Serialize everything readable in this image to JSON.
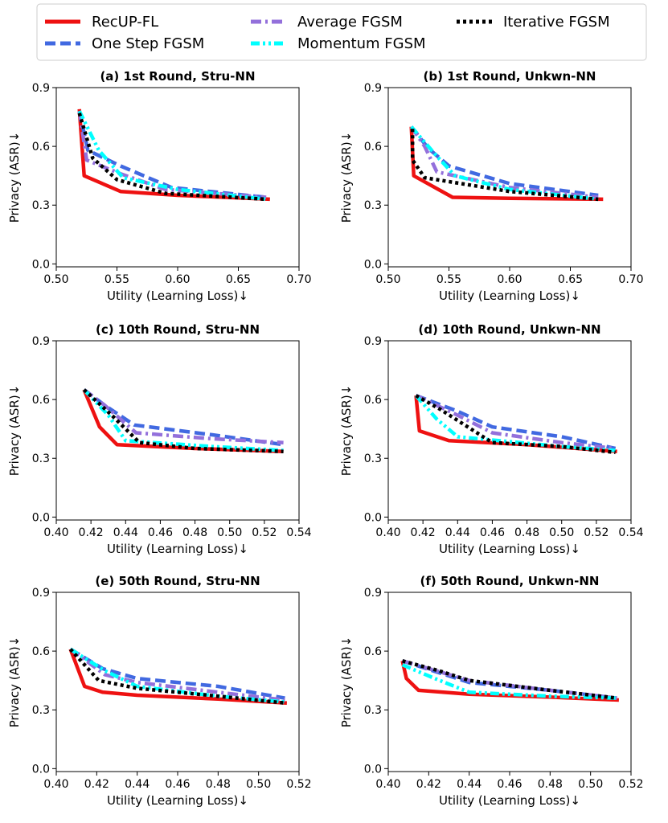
{
  "chart_data": {
    "legend": {
      "placement": "top-center",
      "entries": [
        {
          "name": "RecUP-FL",
          "color": "#ee1111",
          "dash": "solid"
        },
        {
          "name": "One Step FGSM",
          "color": "#4169e1",
          "dash": "dashed"
        },
        {
          "name": "Average FGSM",
          "color": "#9370db",
          "dash": "dashdot"
        },
        {
          "name": "Momentum FGSM",
          "color": "#00ffff",
          "dash": "dashdotdot"
        },
        {
          "name": "Iterative FGSM",
          "color": "#000000",
          "dash": "dotted"
        }
      ]
    },
    "subplots": [
      {
        "type": "line",
        "title": "(a) 1st Round, Stru-NN",
        "xlabel": "Utility (Learning Loss)↓",
        "ylabel": "Privacy (ASR)↓",
        "xlim": [
          0.5,
          0.7
        ],
        "ylim": [
          -0.015,
          0.9
        ],
        "xticks": [
          0.5,
          0.55,
          0.6,
          0.65,
          0.7
        ],
        "xtick_labels": [
          "0.50",
          "0.55",
          "0.60",
          "0.65",
          "0.70"
        ],
        "yticks": [
          0.0,
          0.3,
          0.6,
          0.9
        ],
        "ytick_labels": [
          "0.0",
          "0.3",
          "0.6",
          "0.9"
        ],
        "series": [
          {
            "name": "RecUP-FL",
            "x": [
              0.519,
              0.523,
              0.553,
              0.6,
              0.676
            ],
            "y": [
              0.79,
              0.45,
              0.37,
              0.35,
              0.33
            ]
          },
          {
            "name": "One Step FGSM",
            "x": [
              0.519,
              0.526,
              0.553,
              0.595,
              0.673
            ],
            "y": [
              0.78,
              0.58,
              0.5,
              0.39,
              0.34
            ]
          },
          {
            "name": "Average FGSM",
            "x": [
              0.519,
              0.525,
              0.553,
              0.59,
              0.673
            ],
            "y": [
              0.78,
              0.53,
              0.46,
              0.38,
              0.34
            ]
          },
          {
            "name": "Momentum FGSM",
            "x": [
              0.519,
              0.535,
              0.555,
              0.6,
              0.673
            ],
            "y": [
              0.78,
              0.58,
              0.44,
              0.38,
              0.33
            ]
          },
          {
            "name": "Iterative FGSM",
            "x": [
              0.519,
              0.53,
              0.55,
              0.59,
              0.673
            ],
            "y": [
              0.77,
              0.54,
              0.43,
              0.36,
              0.33
            ]
          }
        ]
      },
      {
        "type": "line",
        "title": "(b) 1st Round, Unkwn-NN",
        "xlabel": "Utility (Learning Loss)↓",
        "ylabel": "Privacy (ASR)↓",
        "xlim": [
          0.5,
          0.7
        ],
        "ylim": [
          -0.015,
          0.9
        ],
        "xticks": [
          0.5,
          0.55,
          0.6,
          0.65,
          0.7
        ],
        "xtick_labels": [
          "0.50",
          "0.55",
          "0.60",
          "0.65",
          "0.70"
        ],
        "yticks": [
          0.0,
          0.3,
          0.6,
          0.9
        ],
        "ytick_labels": [
          "0.0",
          "0.3",
          "0.6",
          "0.9"
        ],
        "series": [
          {
            "name": "RecUP-FL",
            "x": [
              0.519,
              0.521,
              0.553,
              0.6,
              0.677
            ],
            "y": [
              0.7,
              0.45,
              0.34,
              0.335,
              0.33
            ]
          },
          {
            "name": "One Step FGSM",
            "x": [
              0.519,
              0.533,
              0.55,
              0.6,
              0.673
            ],
            "y": [
              0.7,
              0.59,
              0.5,
              0.41,
              0.35
            ]
          },
          {
            "name": "Average FGSM",
            "x": [
              0.519,
              0.53,
              0.54,
              0.6,
              0.673
            ],
            "y": [
              0.7,
              0.6,
              0.47,
              0.39,
              0.34
            ]
          },
          {
            "name": "Momentum FGSM",
            "x": [
              0.519,
              0.54,
              0.555,
              0.6,
              0.673
            ],
            "y": [
              0.7,
              0.55,
              0.45,
              0.38,
              0.33
            ]
          },
          {
            "name": "Iterative FGSM",
            "x": [
              0.52,
              0.52,
              0.53,
              0.6,
              0.673
            ],
            "y": [
              0.69,
              0.53,
              0.44,
              0.37,
              0.33
            ]
          }
        ]
      },
      {
        "type": "line",
        "title": "(c) 10th Round, Stru-NN",
        "xlabel": "Utility (Learning Loss)↓",
        "ylabel": "Privacy (ASR)↓",
        "xlim": [
          0.4,
          0.54
        ],
        "ylim": [
          -0.015,
          0.9
        ],
        "xticks": [
          0.4,
          0.42,
          0.44,
          0.46,
          0.48,
          0.5,
          0.52,
          0.54
        ],
        "xtick_labels": [
          "0.40",
          "0.42",
          "0.44",
          "0.46",
          "0.48",
          "0.50",
          "0.52",
          "0.54"
        ],
        "yticks": [
          0.0,
          0.3,
          0.6,
          0.9
        ],
        "ytick_labels": [
          "0.0",
          "0.3",
          "0.6",
          "0.9"
        ],
        "series": [
          {
            "name": "RecUP-FL",
            "x": [
              0.416,
              0.425,
              0.435,
              0.48,
              0.531
            ],
            "y": [
              0.65,
              0.46,
              0.37,
              0.35,
              0.335
            ]
          },
          {
            "name": "One Step FGSM",
            "x": [
              0.416,
              0.428,
              0.445,
              0.49,
              0.531
            ],
            "y": [
              0.65,
              0.57,
              0.47,
              0.42,
              0.37
            ]
          },
          {
            "name": "Average FGSM",
            "x": [
              0.416,
              0.428,
              0.446,
              0.49,
              0.531
            ],
            "y": [
              0.65,
              0.57,
              0.43,
              0.4,
              0.38
            ]
          },
          {
            "name": "Momentum FGSM",
            "x": [
              0.416,
              0.43,
              0.44,
              0.49,
              0.531
            ],
            "y": [
              0.65,
              0.52,
              0.39,
              0.36,
              0.34
            ]
          },
          {
            "name": "Iterative FGSM",
            "x": [
              0.416,
              0.432,
              0.448,
              0.48,
              0.531
            ],
            "y": [
              0.65,
              0.52,
              0.38,
              0.35,
              0.335
            ]
          }
        ]
      },
      {
        "type": "line",
        "title": "(d) 10th Round, Unkwn-NN",
        "xlabel": "Utility (Learning Loss)↓",
        "ylabel": "Privacy (ASR)↓",
        "xlim": [
          0.4,
          0.54
        ],
        "ylim": [
          -0.015,
          0.9
        ],
        "xticks": [
          0.4,
          0.42,
          0.44,
          0.46,
          0.48,
          0.5,
          0.52,
          0.54
        ],
        "xtick_labels": [
          "0.40",
          "0.42",
          "0.44",
          "0.46",
          "0.48",
          "0.50",
          "0.52",
          "0.54"
        ],
        "yticks": [
          0.0,
          0.3,
          0.6,
          0.9
        ],
        "ytick_labels": [
          "0.0",
          "0.3",
          "0.6",
          "0.9"
        ],
        "series": [
          {
            "name": "RecUP-FL",
            "x": [
              0.416,
              0.418,
              0.435,
              0.48,
              0.532
            ],
            "y": [
              0.62,
              0.44,
              0.39,
              0.37,
              0.335
            ]
          },
          {
            "name": "One Step FGSM",
            "x": [
              0.416,
              0.44,
              0.46,
              0.5,
              0.531
            ],
            "y": [
              0.62,
              0.54,
              0.46,
              0.41,
              0.35
            ]
          },
          {
            "name": "Average FGSM",
            "x": [
              0.416,
              0.44,
              0.46,
              0.5,
              0.531
            ],
            "y": [
              0.62,
              0.52,
              0.43,
              0.38,
              0.35
            ]
          },
          {
            "name": "Momentum FGSM",
            "x": [
              0.416,
              0.428,
              0.44,
              0.5,
              0.531
            ],
            "y": [
              0.62,
              0.5,
              0.41,
              0.36,
              0.34
            ]
          },
          {
            "name": "Iterative FGSM",
            "x": [
              0.416,
              0.43,
              0.46,
              0.5,
              0.531
            ],
            "y": [
              0.62,
              0.55,
              0.38,
              0.36,
              0.33
            ]
          }
        ]
      },
      {
        "type": "line",
        "title": "(e) 50th Round, Stru-NN",
        "xlabel": "Utility (Learning Loss)↓",
        "ylabel": "Privacy (ASR)↓",
        "xlim": [
          0.4,
          0.52
        ],
        "ylim": [
          -0.015,
          0.9
        ],
        "xticks": [
          0.4,
          0.42,
          0.44,
          0.46,
          0.48,
          0.5,
          0.52
        ],
        "xtick_labels": [
          "0.40",
          "0.42",
          "0.44",
          "0.46",
          "0.48",
          "0.50",
          "0.52"
        ],
        "yticks": [
          0.0,
          0.3,
          0.6,
          0.9
        ],
        "ytick_labels": [
          "0.0",
          "0.3",
          "0.6",
          "0.9"
        ],
        "series": [
          {
            "name": "RecUP-FL",
            "x": [
              0.407,
              0.414,
              0.423,
              0.44,
              0.48,
              0.514
            ],
            "y": [
              0.61,
              0.42,
              0.39,
              0.375,
              0.355,
              0.335
            ]
          },
          {
            "name": "One Step FGSM",
            "x": [
              0.407,
              0.423,
              0.44,
              0.48,
              0.513
            ],
            "y": [
              0.61,
              0.51,
              0.46,
              0.42,
              0.36
            ]
          },
          {
            "name": "Average FGSM",
            "x": [
              0.407,
              0.424,
              0.44,
              0.48,
              0.513
            ],
            "y": [
              0.61,
              0.48,
              0.44,
              0.39,
              0.35
            ]
          },
          {
            "name": "Momentum FGSM",
            "x": [
              0.407,
              0.424,
              0.44,
              0.48,
              0.513
            ],
            "y": [
              0.61,
              0.5,
              0.42,
              0.37,
              0.34
            ]
          },
          {
            "name": "Iterative FGSM",
            "x": [
              0.407,
              0.421,
              0.44,
              0.48,
              0.513
            ],
            "y": [
              0.61,
              0.45,
              0.41,
              0.37,
              0.335
            ]
          }
        ]
      },
      {
        "type": "line",
        "title": "(f) 50th Round, Unkwn-NN",
        "xlabel": "Utility (Learning Loss)↓",
        "ylabel": "Privacy (ASR)↓",
        "xlim": [
          0.4,
          0.52
        ],
        "ylim": [
          -0.015,
          0.9
        ],
        "xticks": [
          0.4,
          0.42,
          0.44,
          0.46,
          0.48,
          0.5,
          0.52
        ],
        "xtick_labels": [
          "0.40",
          "0.42",
          "0.44",
          "0.46",
          "0.48",
          "0.50",
          "0.52"
        ],
        "yticks": [
          0.0,
          0.3,
          0.6,
          0.9
        ],
        "ytick_labels": [
          "0.0",
          "0.3",
          "0.6",
          "0.9"
        ],
        "series": [
          {
            "name": "RecUP-FL",
            "x": [
              0.407,
              0.409,
              0.415,
              0.44,
              0.48,
              0.514
            ],
            "y": [
              0.55,
              0.46,
              0.4,
              0.38,
              0.365,
              0.35
            ]
          },
          {
            "name": "One Step FGSM",
            "x": [
              0.407,
              0.44,
              0.48,
              0.513
            ],
            "y": [
              0.55,
              0.44,
              0.4,
              0.36
            ]
          },
          {
            "name": "Average FGSM",
            "x": [
              0.407,
              0.44,
              0.48,
              0.513
            ],
            "y": [
              0.55,
              0.45,
              0.4,
              0.36
            ]
          },
          {
            "name": "Momentum FGSM",
            "x": [
              0.407,
              0.423,
              0.44,
              0.48,
              0.513
            ],
            "y": [
              0.53,
              0.46,
              0.39,
              0.37,
              0.36
            ]
          },
          {
            "name": "Iterative FGSM",
            "x": [
              0.407,
              0.425,
              0.44,
              0.48,
              0.513
            ],
            "y": [
              0.55,
              0.5,
              0.45,
              0.4,
              0.36
            ]
          }
        ]
      }
    ]
  }
}
